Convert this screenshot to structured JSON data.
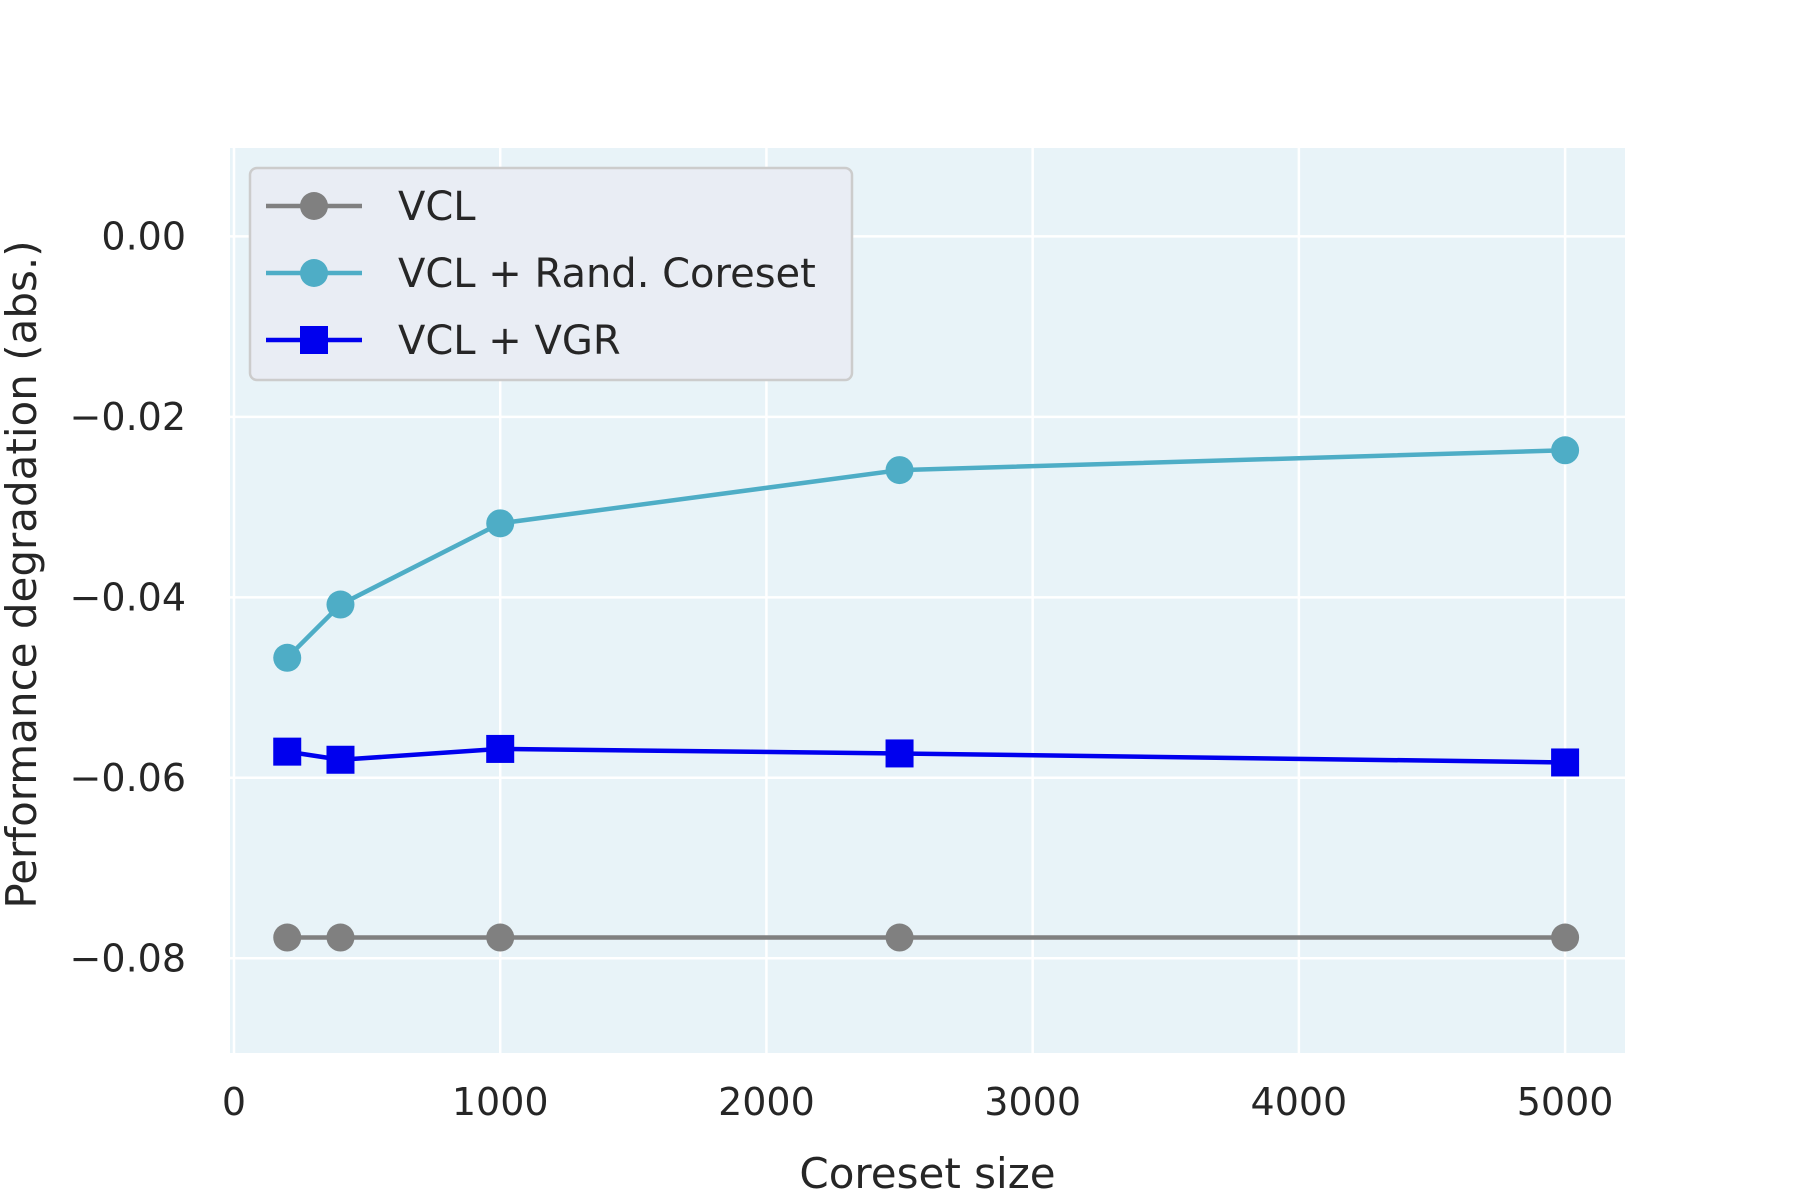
{
  "chart_data": {
    "type": "line",
    "title": "",
    "xlabel": "Coreset size",
    "ylabel": "Performance degradation (abs.)",
    "xlim": [
      -15,
      5225
    ],
    "ylim": [
      -0.0905,
      0.0098
    ],
    "x_ticks": [
      0,
      1000,
      2000,
      3000,
      4000,
      5000
    ],
    "x_tick_labels": [
      "0",
      "1000",
      "2000",
      "3000",
      "4000",
      "5000"
    ],
    "y_ticks": [
      0.0,
      -0.02,
      -0.04,
      -0.06,
      -0.08
    ],
    "y_tick_labels": [
      "0.00",
      "−0.02",
      "−0.04",
      "−0.06",
      "−0.08"
    ],
    "grid": true,
    "legend_position": "top-left",
    "x": [
      200,
      400,
      1000,
      2500,
      5000
    ],
    "series": [
      {
        "name": "VCL",
        "values": [
          -0.0777,
          -0.0777,
          -0.0777,
          -0.0777,
          -0.0777
        ],
        "color": "#808080",
        "marker": "circle"
      },
      {
        "name": "VCL + Rand. Coreset",
        "values": [
          -0.0467,
          -0.0408,
          -0.0318,
          -0.0259,
          -0.0237
        ],
        "color": "#4eadc6",
        "marker": "circle"
      },
      {
        "name": "VCL + VGR",
        "values": [
          -0.0571,
          -0.058,
          -0.0568,
          -0.0573,
          -0.0583
        ],
        "color": "#0000ee",
        "marker": "square"
      }
    ]
  },
  "style": {
    "plot_background": "#e8f3f8",
    "grid_color": "#ffffff",
    "legend_background": "#e9edf4",
    "legend_border": "#cccccc"
  }
}
